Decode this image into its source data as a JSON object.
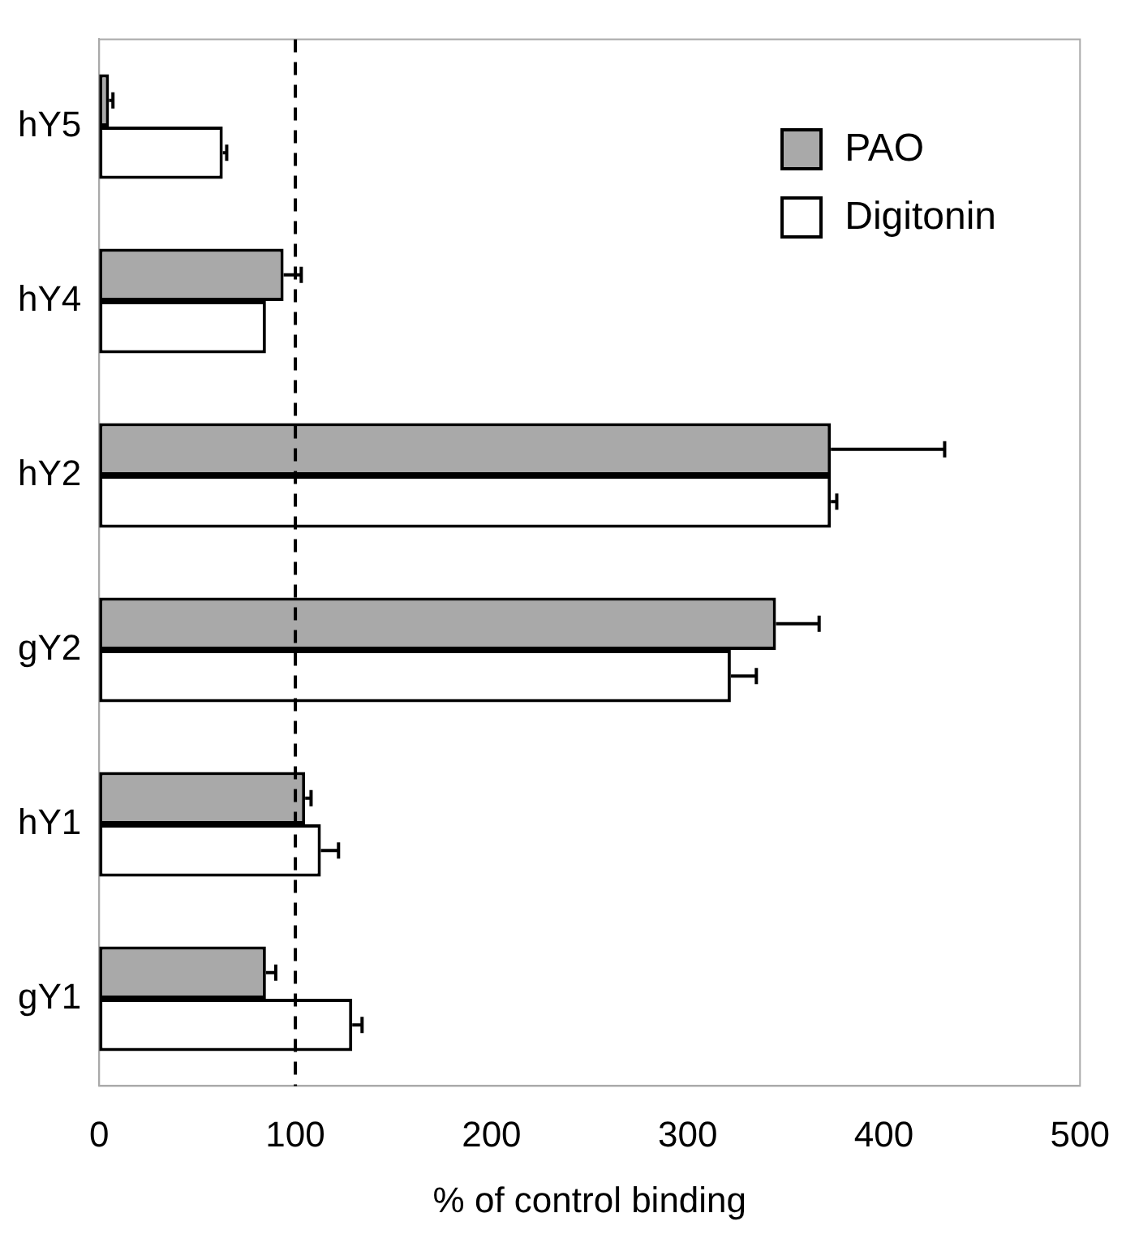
{
  "chart_data": {
    "type": "bar",
    "orientation": "horizontal",
    "xlabel": "% of control binding",
    "categories": [
      "hY5",
      "hY4",
      "hY2",
      "gY2",
      "hY1",
      "gY1"
    ],
    "series": [
      {
        "name": "PAO",
        "color": "#a9a9a9",
        "values": [
          5,
          94,
          373,
          345,
          105,
          85
        ],
        "errors": [
          [
            5,
            7
          ],
          [
            94,
            103
          ],
          [
            373,
            431
          ],
          [
            345,
            367
          ],
          [
            105,
            108
          ],
          [
            85,
            90
          ]
        ]
      },
      {
        "name": "Digitonin",
        "color": "#ffffff",
        "values": [
          63,
          85,
          373,
          322,
          113,
          129
        ],
        "errors": [
          [
            63,
            65
          ],
          null,
          [
            373,
            376
          ],
          [
            322,
            335
          ],
          [
            113,
            122
          ],
          [
            129,
            134
          ]
        ]
      }
    ],
    "xlim": [
      0,
      500
    ],
    "xticks": [
      0,
      100,
      200,
      300,
      400,
      500
    ],
    "ref_lines": [
      {
        "axis": "x",
        "value": 100,
        "line_style": "dashed",
        "color": "#000000"
      }
    ],
    "legend": "top right",
    "grid": false
  }
}
